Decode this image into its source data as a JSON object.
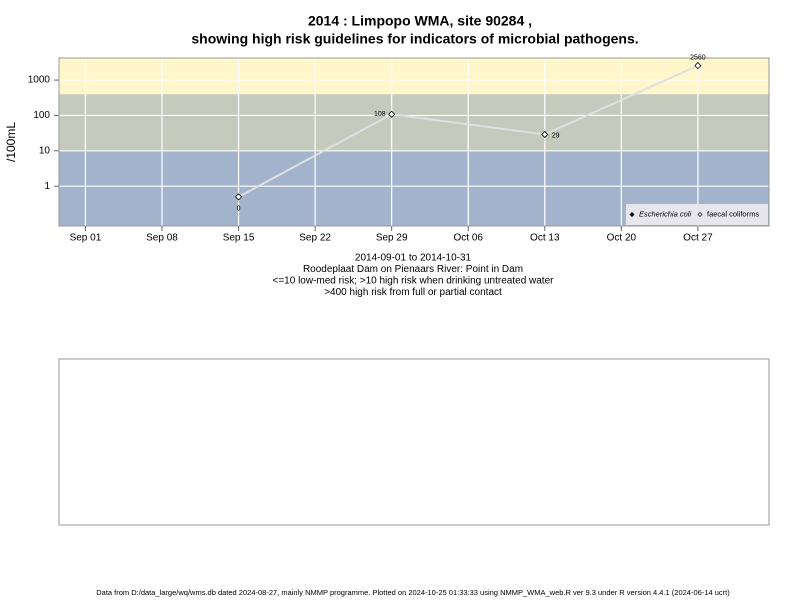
{
  "chart_data": {
    "type": "line",
    "title": "2014 : Limpopo WMA, site 90284 ,",
    "subtitle": "showing high risk guidelines for indicators of microbial pathogens.",
    "y_label": "/100mL",
    "log_y": true,
    "grid": true,
    "legend": "bottom-right",
    "x": [
      "2014-09-15",
      "2014-09-29",
      "2014-10-13",
      "2014-10-27"
    ],
    "series": [
      {
        "name": "Escherichia coli",
        "color": "#000000",
        "values": [
          null,
          null,
          null,
          null
        ]
      },
      {
        "name": "faecal coliforms",
        "color": "#e0e0e0",
        "values": [
          0.5,
          108,
          29,
          2560
        ],
        "value_labels": [
          "0",
          "108",
          "29",
          "2560"
        ]
      }
    ],
    "xlim": [
      "2014-08-29T14:00",
      "2014-11-02T12:00"
    ],
    "xticks": [
      {
        "value": "2014-09-01",
        "label": "Sep 01"
      },
      {
        "value": "2014-09-08",
        "label": "Sep 08"
      },
      {
        "value": "2014-09-15",
        "label": "Sep 15"
      },
      {
        "value": "2014-09-22",
        "label": "Sep 22"
      },
      {
        "value": "2014-09-29",
        "label": "Sep 29"
      },
      {
        "value": "2014-10-06",
        "label": "Oct 06"
      },
      {
        "value": "2014-10-13",
        "label": "Oct 13"
      },
      {
        "value": "2014-10-20",
        "label": "Oct 20"
      },
      {
        "value": "2014-10-27",
        "label": "Oct 27"
      }
    ],
    "ylim": [
      0.075,
      4200
    ],
    "yticks": [
      1,
      10,
      100,
      1000
    ],
    "thresholds": [
      10,
      400
    ],
    "band_colors": [
      "#a3b3cc",
      "#c4cbbd",
      "#fff6cc"
    ],
    "captions": [
      "2014-09-01 to 2014-10-31",
      "Roodeplaat Dam on Pienaars River: Point in Dam",
      "<=10 low-med risk; >10 high risk when drinking untreated water",
      ">400 high risk from full or partial contact"
    ],
    "footer": "Data from D:/data_large/wq/wms.db dated 2024-08-27, mainly NMMP programme. Plotted on 2024-10-25 01:33:33 using NMMP_WMA_web.R ver 9.3 under R version 4.4.1 (2024-06-14 ucrt)"
  }
}
